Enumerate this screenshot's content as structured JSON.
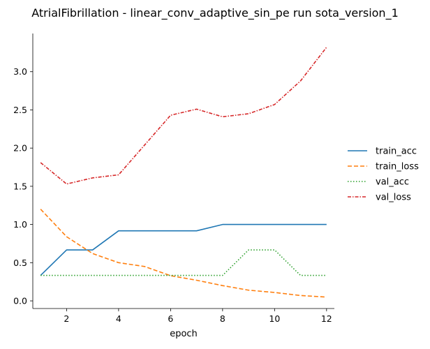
{
  "chart_data": {
    "type": "line",
    "title": "AtrialFibrillation - linear_conv_adaptive_sin_pe run sota_version_1",
    "xlabel": "epoch",
    "ylabel": "",
    "xlim": [
      0.7,
      12.3
    ],
    "ylim": [
      -0.1,
      3.5
    ],
    "xticks": [
      2,
      4,
      6,
      8,
      10,
      12
    ],
    "yticks": [
      0.0,
      0.5,
      1.0,
      1.5,
      2.0,
      2.5,
      3.0
    ],
    "grid": false,
    "legend_position": "right",
    "x": [
      1,
      2,
      3,
      4,
      5,
      6,
      7,
      8,
      9,
      10,
      11,
      12
    ],
    "series": [
      {
        "name": "train_acc",
        "color": "#1f77b4",
        "dash": "solid",
        "values": [
          0.333,
          0.667,
          0.667,
          0.917,
          0.917,
          0.917,
          0.917,
          1.0,
          1.0,
          1.0,
          1.0,
          1.0
        ]
      },
      {
        "name": "train_loss",
        "color": "#ff7f0e",
        "dash": "dashed",
        "values": [
          1.2,
          0.84,
          0.62,
          0.5,
          0.45,
          0.33,
          0.27,
          0.2,
          0.14,
          0.11,
          0.07,
          0.05
        ]
      },
      {
        "name": "val_acc",
        "color": "#2ca02c",
        "dash": "dotted",
        "values": [
          0.333,
          0.333,
          0.333,
          0.333,
          0.333,
          0.333,
          0.333,
          0.333,
          0.667,
          0.667,
          0.333,
          0.333
        ]
      },
      {
        "name": "val_loss",
        "color": "#d62728",
        "dash": "dashdot",
        "values": [
          1.81,
          1.53,
          1.61,
          1.65,
          2.04,
          2.43,
          2.51,
          2.41,
          2.45,
          2.57,
          2.88,
          3.32
        ]
      }
    ]
  }
}
